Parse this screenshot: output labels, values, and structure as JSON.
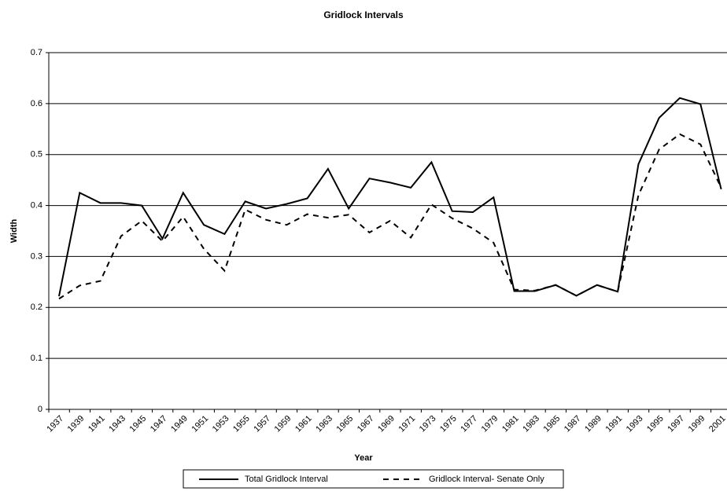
{
  "chart_data": {
    "type": "line",
    "title": "Gridlock Intervals",
    "x_label": "Year",
    "y_label": "Width",
    "categories": [
      "1937",
      "1939",
      "1941",
      "1943",
      "1945",
      "1947",
      "1949",
      "1951",
      "1953",
      "1955",
      "1957",
      "1959",
      "1961",
      "1963",
      "1965",
      "1967",
      "1969",
      "1971",
      "1973",
      "1975",
      "1977",
      "1979",
      "1981",
      "1983",
      "1985",
      "1987",
      "1989",
      "1991",
      "1993",
      "1995",
      "1997",
      "1999",
      "2001"
    ],
    "series": [
      {
        "name": "Total Gridlock Interval",
        "color": "#000000",
        "dash": "solid",
        "values": [
          0.222,
          0.425,
          0.405,
          0.405,
          0.4,
          0.335,
          0.425,
          0.362,
          0.344,
          0.408,
          0.394,
          0.403,
          0.414,
          0.472,
          0.394,
          0.453,
          0.445,
          0.435,
          0.485,
          0.389,
          0.387,
          0.416,
          0.232,
          0.232,
          0.244,
          0.223,
          0.244,
          0.231,
          0.481,
          0.572,
          0.611,
          0.599,
          0.432
        ]
      },
      {
        "name": "Gridlock Interval- Senate Only",
        "color": "#000000",
        "dash": "dashed",
        "values": [
          0.217,
          0.243,
          0.252,
          0.34,
          0.37,
          0.33,
          0.378,
          0.315,
          0.272,
          0.392,
          0.372,
          0.362,
          0.383,
          0.376,
          0.382,
          0.347,
          0.37,
          0.337,
          0.402,
          0.375,
          0.355,
          0.327,
          0.235,
          0.233,
          0.244,
          0.223,
          0.244,
          0.231,
          0.42,
          0.51,
          0.54,
          0.52,
          0.435
        ]
      }
    ],
    "ylim": [
      0,
      0.7
    ],
    "yticks": [
      0,
      0.1,
      0.2,
      0.3,
      0.4,
      0.5,
      0.6,
      0.7
    ],
    "grid": true,
    "legend": "bottom"
  }
}
